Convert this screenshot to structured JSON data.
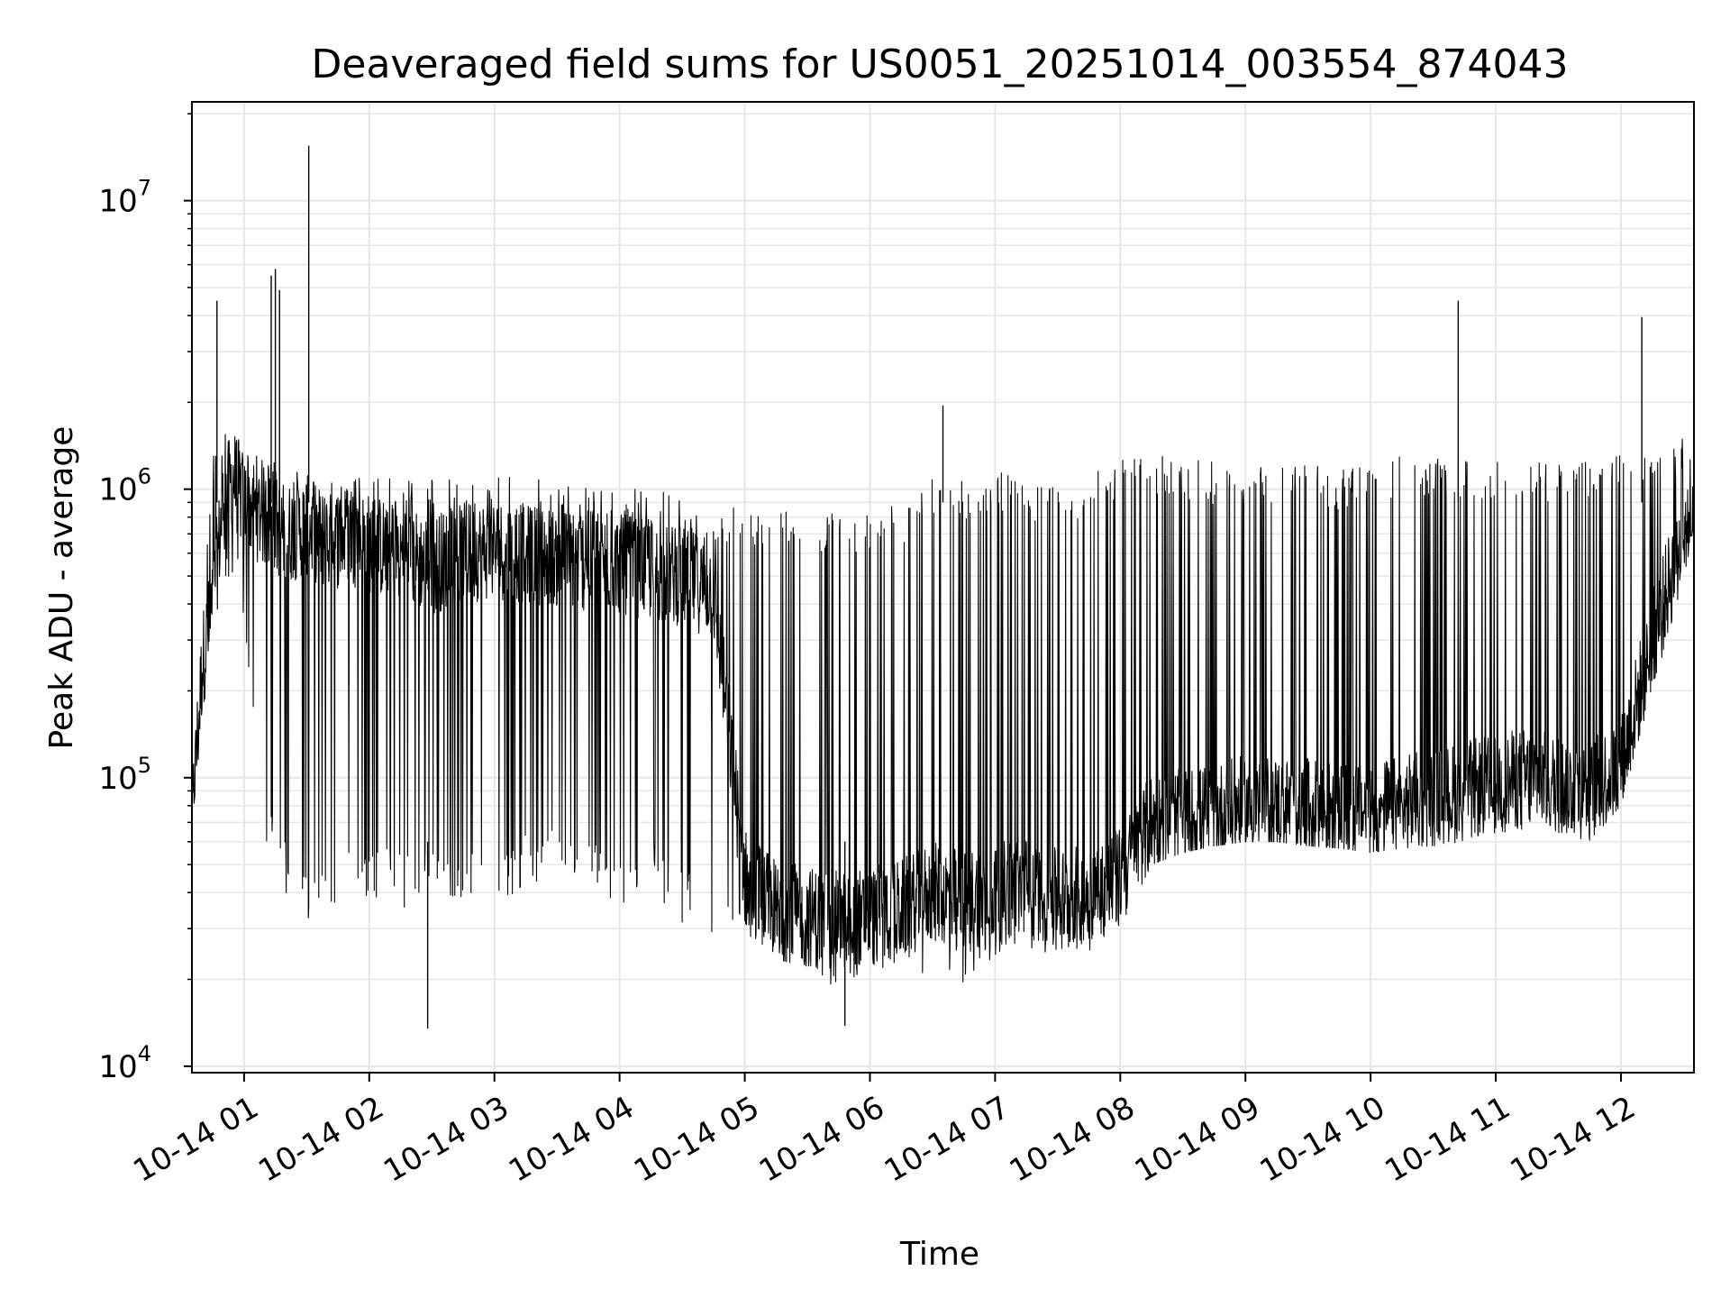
{
  "chart_data": {
    "type": "line",
    "title": "Deaveraged field sums for US0051_20251014_003554_874043",
    "xlabel": "Time",
    "ylabel": "Peak ADU - average",
    "yscale": "log",
    "ylim": [
      9500,
      22000000
    ],
    "xlim": [
      "2025-10-14T00:35",
      "2025-10-14T12:35"
    ],
    "grid": true,
    "line_color": "#000000",
    "x_ticks": [
      {
        "x": "2025-10-14T01:00",
        "label": "10-14 01"
      },
      {
        "x": "2025-10-14T02:00",
        "label": "10-14 02"
      },
      {
        "x": "2025-10-14T03:00",
        "label": "10-14 03"
      },
      {
        "x": "2025-10-14T04:00",
        "label": "10-14 04"
      },
      {
        "x": "2025-10-14T05:00",
        "label": "10-14 05"
      },
      {
        "x": "2025-10-14T06:00",
        "label": "10-14 06"
      },
      {
        "x": "2025-10-14T07:00",
        "label": "10-14 07"
      },
      {
        "x": "2025-10-14T08:00",
        "label": "10-14 08"
      },
      {
        "x": "2025-10-14T09:00",
        "label": "10-14 09"
      },
      {
        "x": "2025-10-14T10:00",
        "label": "10-14 10"
      },
      {
        "x": "2025-10-14T11:00",
        "label": "10-14 11"
      },
      {
        "x": "2025-10-14T12:00",
        "label": "10-14 12"
      }
    ],
    "y_ticks": [
      {
        "value": 10000,
        "base": "10",
        "exp": "4"
      },
      {
        "value": 100000,
        "base": "10",
        "exp": "5"
      },
      {
        "value": 1000000,
        "base": "10",
        "exp": "6"
      },
      {
        "value": 10000000,
        "base": "10",
        "exp": "7"
      }
    ],
    "series": [
      {
        "x": [
          "2025-10-14T00:35",
          "2025-10-14T00:40",
          "2025-10-14T00:45",
          "2025-10-14T00:50",
          "2025-10-14T00:55",
          "2025-10-14T01:00",
          "2025-10-14T01:10",
          "2025-10-14T01:20",
          "2025-10-14T01:30",
          "2025-10-14T01:40",
          "2025-10-14T01:50",
          "2025-10-14T02:00",
          "2025-10-14T02:15",
          "2025-10-14T02:30",
          "2025-10-14T02:45",
          "2025-10-14T03:00",
          "2025-10-14T03:15",
          "2025-10-14T03:30",
          "2025-10-14T03:45",
          "2025-10-14T04:00",
          "2025-10-14T04:15",
          "2025-10-14T04:30",
          "2025-10-14T04:45",
          "2025-10-14T05:00",
          "2025-10-14T05:15",
          "2025-10-14T05:30",
          "2025-10-14T05:45",
          "2025-10-14T06:00",
          "2025-10-14T06:15",
          "2025-10-14T06:30",
          "2025-10-14T06:45",
          "2025-10-14T07:00",
          "2025-10-14T07:15",
          "2025-10-14T07:30",
          "2025-10-14T07:45",
          "2025-10-14T08:00",
          "2025-10-14T08:15",
          "2025-10-14T08:30",
          "2025-10-14T08:45",
          "2025-10-14T09:00",
          "2025-10-14T09:15",
          "2025-10-14T09:30",
          "2025-10-14T09:45",
          "2025-10-14T10:00",
          "2025-10-14T10:15",
          "2025-10-14T10:30",
          "2025-10-14T10:45",
          "2025-10-14T11:00",
          "2025-10-14T11:15",
          "2025-10-14T11:30",
          "2025-10-14T11:45",
          "2025-10-14T12:00",
          "2025-10-14T12:15",
          "2025-10-14T12:30",
          "2025-10-14T12:35"
        ],
        "y": [
          70000,
          250000,
          400000,
          900000,
          1100000,
          900000,
          800000,
          700000,
          750000,
          650000,
          700000,
          650000,
          600000,
          550000,
          600000,
          620000,
          600000,
          580000,
          560000,
          550000,
          520000,
          500000,
          450000,
          45000,
          35000,
          33000,
          32000,
          33000,
          35000,
          40000,
          38000,
          40000,
          42000,
          38000,
          40000,
          45000,
          70000,
          72000,
          75000,
          80000,
          80000,
          78000,
          75000,
          78000,
          80000,
          85000,
          90000,
          95000,
          100000,
          95000,
          90000,
          110000,
          300000,
          700000,
          1000000
        ],
        "y_low": [
          70000,
          150000,
          300000,
          500000,
          400000,
          350000,
          60000,
          40000,
          30000,
          35000,
          40000,
          38000,
          35000,
          40000,
          38000,
          35000,
          40000,
          45000,
          40000,
          35000,
          40000,
          30000,
          28000,
          22000,
          20000,
          21000,
          18000,
          20000,
          22000,
          20000,
          19000,
          22000,
          25000,
          24000,
          25000,
          30000,
          50000,
          55000,
          58000,
          60000,
          60000,
          58000,
          57000,
          55000,
          57000,
          58000,
          60000,
          62000,
          65000,
          64000,
          60000,
          80000,
          200000,
          450000,
          600000
        ],
        "y_high": [
          90000,
          450000,
          1400000,
          1600000,
          1700000,
          1500000,
          1300000,
          1200000,
          1200000,
          1100000,
          1100000,
          1100000,
          1100000,
          1100000,
          1100000,
          1100000,
          1100000,
          1050000,
          1050000,
          1000000,
          1000000,
          950000,
          900000,
          900000,
          850000,
          850000,
          820000,
          850000,
          900000,
          1100000,
          1100000,
          1150000,
          1100000,
          1050000,
          1100000,
          1300000,
          1300000,
          1300000,
          1250000,
          1250000,
          1250000,
          1200000,
          1200000,
          1250000,
          1300000,
          1300000,
          1300000,
          1300000,
          1300000,
          1250000,
          1300000,
          1400000,
          1500000,
          1500000,
          1400000
        ]
      }
    ],
    "spikes": [
      {
        "x": "2025-10-14T00:47",
        "y": 4500000
      },
      {
        "x": "2025-10-14T01:13",
        "y": 5500000
      },
      {
        "x": "2025-10-14T01:15",
        "y": 5800000
      },
      {
        "x": "2025-10-14T01:17",
        "y": 4900000
      },
      {
        "x": "2025-10-14T01:31",
        "y": 15500000
      },
      {
        "x": "2025-10-14T06:35",
        "y": 1950000
      },
      {
        "x": "2025-10-14T10:42",
        "y": 4500000
      },
      {
        "x": "2025-10-14T12:10",
        "y": 3950000
      }
    ],
    "dips": [
      {
        "x": "2025-10-14T02:28",
        "y": 13500
      },
      {
        "x": "2025-10-14T05:48",
        "y": 13800
      }
    ]
  }
}
